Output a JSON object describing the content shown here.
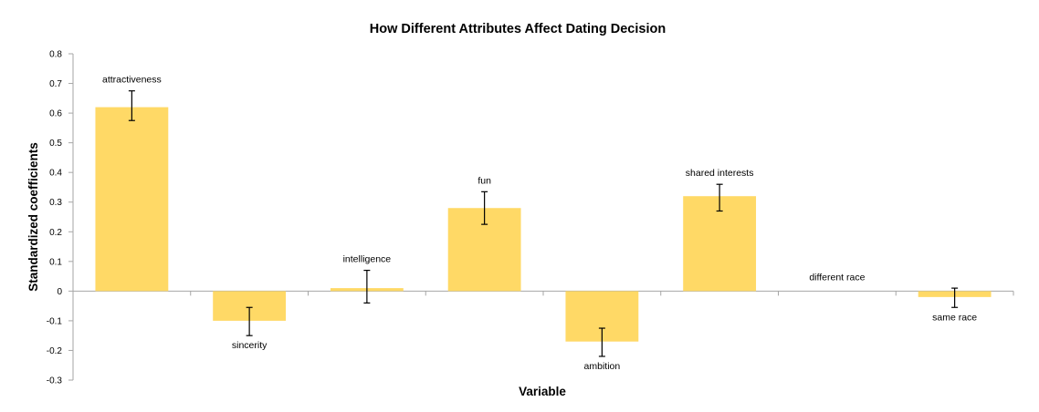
{
  "chart_data": {
    "type": "bar",
    "title": "How Different Attributes Affect Dating Decision",
    "xlabel": "Variable",
    "ylabel": "Standardized coefficients",
    "ylim": [
      -0.3,
      0.8
    ],
    "ytick_step": 0.1,
    "ytick_labels": [
      "0.8",
      "0.7",
      "0.6",
      "0.5",
      "0.4",
      "0.3",
      "0.2",
      "0.1",
      "0",
      "-0.1",
      "-0.2",
      "-0.3"
    ],
    "categories": [
      "attractiveness",
      "sincerity",
      "intelligence",
      "fun",
      "ambition",
      "shared interests",
      "different race",
      "same race"
    ],
    "values": [
      0.62,
      -0.1,
      0.01,
      0.28,
      -0.17,
      0.32,
      0.0,
      -0.02
    ],
    "error_low": [
      0.575,
      -0.15,
      -0.04,
      0.225,
      -0.22,
      0.27,
      null,
      -0.055
    ],
    "error_high": [
      0.675,
      -0.055,
      0.07,
      0.335,
      -0.125,
      0.36,
      null,
      0.01
    ],
    "bar_color": "#ffd966",
    "grid": false,
    "legend": "none"
  }
}
